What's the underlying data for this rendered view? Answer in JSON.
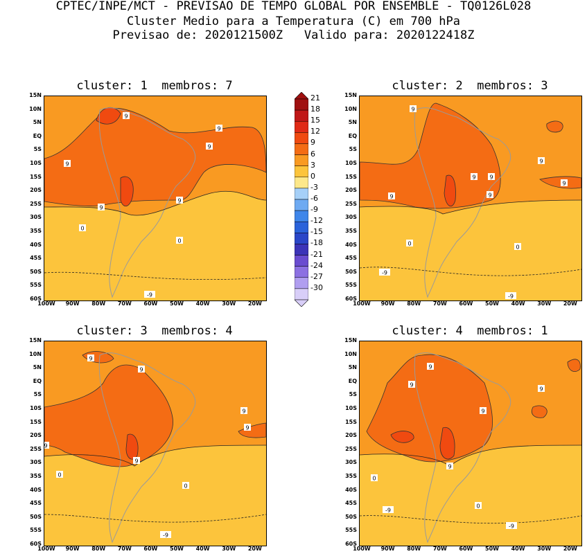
{
  "header": {
    "line1": "CPTEC/INPE/MCT - PREVISAO DE TEMPO GLOBAL POR ENSEMBLE - TQ0126L028",
    "line2": "Cluster Medio para a Temperatura (C) em 700 hPa",
    "line3": "Previsao de: 2020121500Z   Valido para: 2020122418Z"
  },
  "axes": {
    "y_ticks": [
      "15N",
      "10N",
      "5N",
      "EQ",
      "5S",
      "10S",
      "15S",
      "20S",
      "25S",
      "30S",
      "35S",
      "40S",
      "45S",
      "50S",
      "55S",
      "60S"
    ],
    "x_ticks": [
      "100W",
      "90W",
      "80W",
      "70W",
      "60W",
      "50W",
      "40W",
      "30W",
      "20W"
    ]
  },
  "colorbar": {
    "labels": [
      "21",
      "18",
      "15",
      "12",
      "9",
      "6",
      "3",
      "0",
      "-3",
      "-6",
      "-9",
      "-12",
      "-15",
      "-18",
      "-21",
      "-24",
      "-27",
      "-30"
    ],
    "colors": [
      "#a01010",
      "#c01818",
      "#e02a16",
      "#f04a10",
      "#f46c14",
      "#f99a22",
      "#fcc43c",
      "#fde88a",
      "#a6d0f8",
      "#6eaaf2",
      "#3e86ea",
      "#2a62da",
      "#2a46c8",
      "#3c34b8",
      "#6a4cd0",
      "#8c70e2",
      "#b09ef0",
      "#d8cef8"
    ]
  },
  "chart_data": [
    {
      "type": "heatmap",
      "title": "cluster: 1  membros: 7",
      "contour_labels": [
        "9",
        "9",
        "9",
        "9",
        "9",
        "9",
        "0",
        "0",
        "-9"
      ],
      "ylim": [
        "60S",
        "15N"
      ],
      "xlim": [
        "100W",
        "15W"
      ]
    },
    {
      "type": "heatmap",
      "title": "cluster: 2  membros: 3",
      "contour_labels": [
        "9",
        "9",
        "9",
        "9",
        "9",
        "9",
        "9",
        "0",
        "0",
        "-9",
        "-9"
      ],
      "ylim": [
        "60S",
        "15N"
      ],
      "xlim": [
        "100W",
        "15W"
      ]
    },
    {
      "type": "heatmap",
      "title": "cluster: 3  membros: 4",
      "contour_labels": [
        "9",
        "9",
        "9",
        "9",
        "9",
        "9",
        "0",
        "0",
        "-9"
      ],
      "ylim": [
        "60S",
        "15N"
      ],
      "xlim": [
        "100W",
        "15W"
      ]
    },
    {
      "type": "heatmap",
      "title": "cluster: 4  membros: 1",
      "contour_labels": [
        "9",
        "9",
        "9",
        "9",
        "9",
        "0",
        "0",
        "-9",
        "-9"
      ],
      "ylim": [
        "60S",
        "15N"
      ],
      "xlim": [
        "100W",
        "15W"
      ]
    }
  ]
}
